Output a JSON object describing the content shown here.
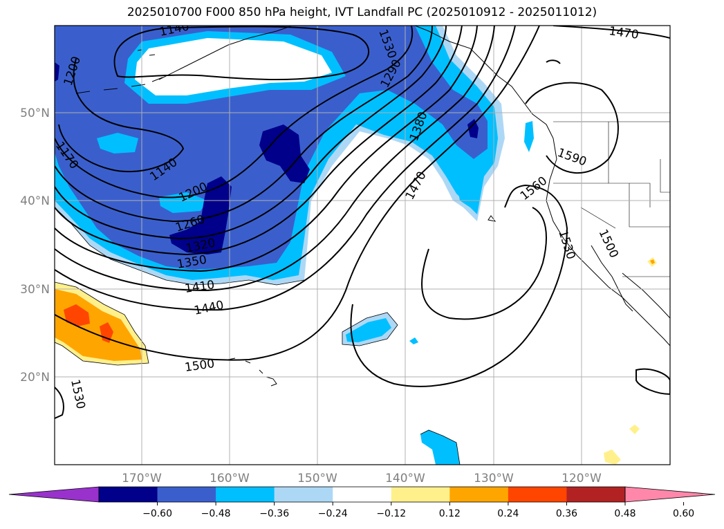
{
  "title": "2025010700 F000 850 hPa height, IVT Landfall PC (2025010912 - 2025011012)",
  "map": {
    "lon_ticks": [
      "170°W",
      "160°W",
      "150°W",
      "140°W",
      "130°W",
      "120°W"
    ],
    "lat_ticks": [
      "50°N",
      "40°N",
      "30°N",
      "20°N"
    ],
    "contour_labels": [
      "1140",
      "1140",
      "1200",
      "1200",
      "1260",
      "1320",
      "1350",
      "1410",
      "1440",
      "1500",
      "1530",
      "1170",
      "1290",
      "1380",
      "1470",
      "1530",
      "1470",
      "1590",
      "1560",
      "1530",
      "1500"
    ],
    "colors": {
      "ocean": "#ffffff",
      "dark_navy": "#00008b",
      "royal_blue": "#3a5fcd",
      "deep_sky": "#00bfff",
      "light_sky": "#add8f5",
      "pale_yellow": "#fff08c",
      "orange": "#ffa500",
      "red_orange": "#ff4500",
      "grid": "#b0b0b0"
    }
  },
  "colorbar": {
    "ticks": [
      "−0.60",
      "−0.48",
      "−0.36",
      "−0.24",
      "−0.12",
      "0.12",
      "0.24",
      "0.36",
      "0.48",
      "0.60"
    ],
    "colors": [
      "#9932cc",
      "#00008b",
      "#3a5fcd",
      "#00bfff",
      "#add8f5",
      "#ffffff",
      "#fff08c",
      "#ffa500",
      "#ff4500",
      "#b22222",
      "#ff88aa"
    ]
  }
}
